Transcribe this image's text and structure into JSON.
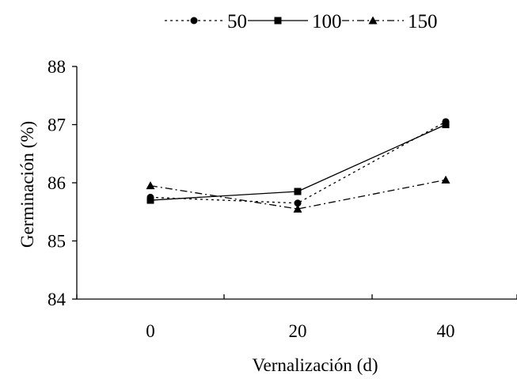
{
  "chart_data": {
    "type": "line",
    "title": "",
    "xlabel": "Vernalización (d)",
    "ylabel": "Germinación (%)",
    "x": [
      0,
      20,
      40
    ],
    "x_tick_labels": [
      "0",
      "20",
      "40"
    ],
    "ylim": [
      84,
      88
    ],
    "y_ticks": [
      84,
      85,
      86,
      87,
      88
    ],
    "grid": false,
    "legend_position": "top",
    "series": [
      {
        "name": "50",
        "values": [
          85.75,
          85.65,
          87.05
        ],
        "line_style": "dotted",
        "marker": "circle",
        "color": "#000000"
      },
      {
        "name": "100",
        "values": [
          85.7,
          85.85,
          87.0
        ],
        "line_style": "solid",
        "marker": "square",
        "color": "#000000"
      },
      {
        "name": "150",
        "values": [
          85.95,
          85.55,
          86.05
        ],
        "line_style": "dash-dot",
        "marker": "triangle",
        "color": "#000000"
      }
    ]
  }
}
